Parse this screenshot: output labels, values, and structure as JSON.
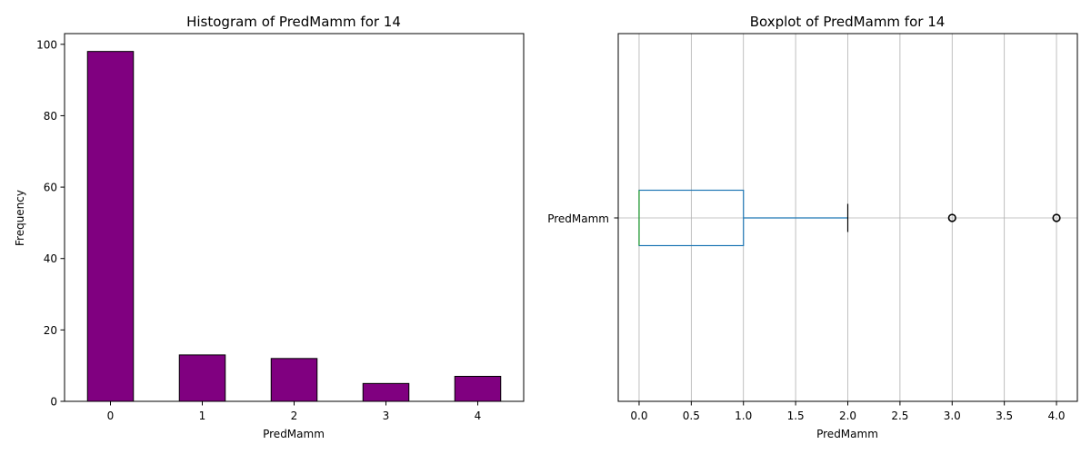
{
  "chart_data": [
    {
      "type": "bar",
      "title": "Histogram of PredMamm for 14",
      "xlabel": "PredMamm",
      "ylabel": "Frequency",
      "categories": [
        "0",
        "1",
        "2",
        "3",
        "4"
      ],
      "values": [
        98,
        13,
        12,
        5,
        7
      ],
      "ylim": [
        0,
        103
      ],
      "yticks": [
        "0",
        "20",
        "40",
        "60",
        "80",
        "100"
      ],
      "bar_color": "#800080",
      "edge_color": "#000000",
      "grid": false,
      "legend": "none"
    },
    {
      "type": "boxplot",
      "title": "Boxplot of PredMamm for 14",
      "xlabel": "PredMamm",
      "ylabel": "",
      "category": "PredMamm",
      "orientation": "horizontal",
      "min": 0.0,
      "q1": 0.0,
      "median": 0.0,
      "q3": 1.0,
      "whisker_low": 0.0,
      "whisker_high": 2.0,
      "outliers": [
        3.0,
        4.0
      ],
      "xlim": [
        -0.2,
        4.2
      ],
      "xticks": [
        "0.0",
        "0.5",
        "1.0",
        "1.5",
        "2.0",
        "2.5",
        "3.0",
        "3.5",
        "4.0"
      ],
      "box_color": "#1f77b4",
      "median_color": "#2ca02c",
      "grid": true,
      "legend": "none"
    }
  ]
}
